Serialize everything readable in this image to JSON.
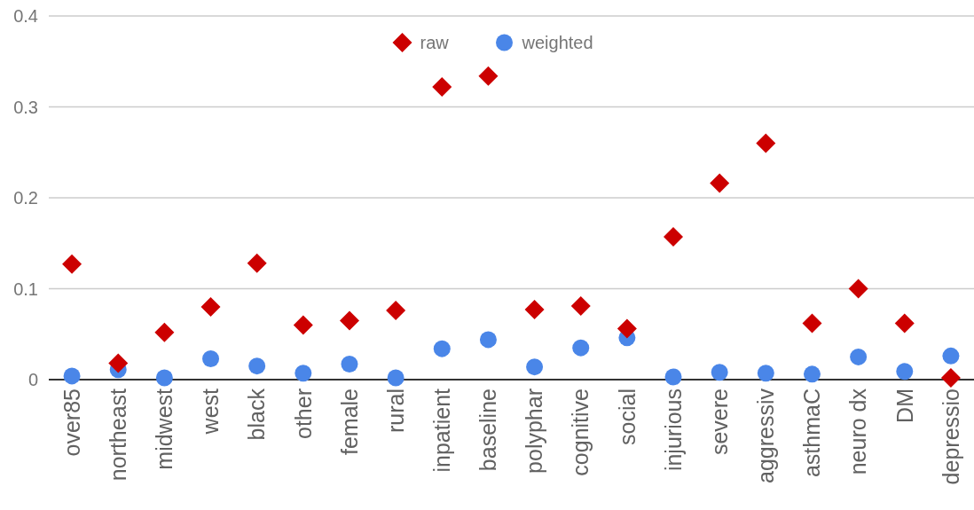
{
  "chart_data": {
    "type": "scatter",
    "categories": [
      "over85",
      "northeast",
      "midwest",
      "west",
      "black",
      "other",
      "female",
      "rural",
      "inpatient",
      "baseline",
      "polyphar",
      "cognitive",
      "social",
      "injurious",
      "severe",
      "aggressiv",
      "asthmaC",
      "neuro dx",
      "DM",
      "depressio"
    ],
    "series": [
      {
        "name": "raw",
        "color": "#cc0000",
        "marker": "diamond",
        "values": [
          0.127,
          0.018,
          0.052,
          0.08,
          0.128,
          0.06,
          0.065,
          0.076,
          0.322,
          0.334,
          0.077,
          0.081,
          0.056,
          0.157,
          0.216,
          0.26,
          0.062,
          0.1,
          0.062,
          0.002
        ]
      },
      {
        "name": "weighted",
        "color": "#4a86e8",
        "marker": "circle",
        "values": [
          0.004,
          0.011,
          0.002,
          0.023,
          0.015,
          0.007,
          0.017,
          0.002,
          0.034,
          0.044,
          0.014,
          0.035,
          0.046,
          0.003,
          0.008,
          0.007,
          0.006,
          0.025,
          0.009,
          0.026
        ]
      }
    ],
    "ylim": [
      0,
      0.4
    ],
    "yticks": [
      0,
      0.1,
      0.2,
      0.3,
      0.4
    ],
    "grid": "y",
    "legend": "top"
  }
}
